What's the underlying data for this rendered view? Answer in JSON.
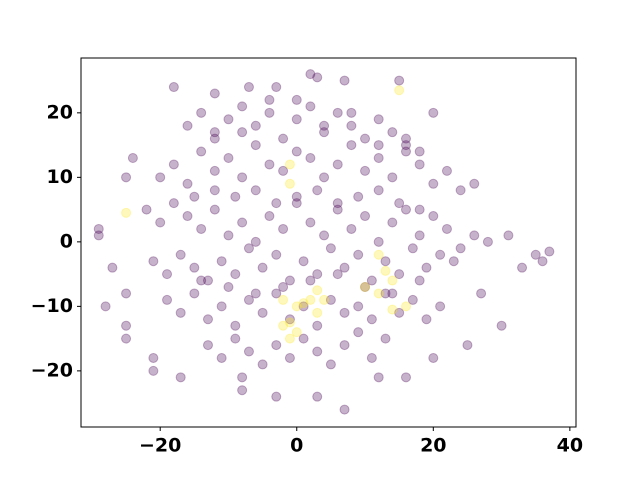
{
  "chart_data": {
    "type": "scatter",
    "xlim": [
      -31.6,
      40.9
    ],
    "ylim": [
      -28.7,
      28.5
    ],
    "xticks": [
      {
        "value": -20,
        "label": "−20"
      },
      0,
      20,
      40
    ],
    "yticks": [
      {
        "value": -20,
        "label": "−20"
      },
      {
        "value": -10,
        "label": "−10"
      },
      0,
      10,
      20
    ],
    "alpha": 0.3,
    "series": [
      {
        "color": "#440154",
        "x": [
          -29,
          -29,
          -27,
          -28,
          -25,
          -25,
          -25,
          -21,
          -21,
          -18,
          -12,
          -7,
          -3,
          2,
          3,
          7,
          15,
          20,
          -24,
          -25,
          37,
          36,
          35,
          33,
          31,
          30,
          27,
          -3,
          -8,
          3,
          7,
          12,
          16,
          20,
          25,
          -8,
          -17,
          -22,
          -20,
          -18,
          -16,
          -14,
          -12,
          -10,
          -8,
          -6,
          -4,
          -2,
          0,
          2,
          4,
          6,
          8,
          10,
          12,
          14,
          16,
          18,
          20,
          22,
          24,
          26,
          28,
          -21,
          -19,
          -17,
          -15,
          -13,
          -11,
          -9,
          -7,
          -5,
          -3,
          -1,
          1,
          3,
          5,
          7,
          9,
          11,
          13,
          15,
          17,
          19,
          21,
          23,
          -20,
          -18,
          -16,
          -14,
          -12,
          -10,
          -8,
          -6,
          -4,
          -2,
          0,
          2,
          4,
          6,
          8,
          10,
          12,
          14,
          16,
          18,
          20,
          22,
          24,
          26,
          -19,
          -17,
          -15,
          -13,
          -11,
          -9,
          -7,
          -5,
          -3,
          -1,
          1,
          3,
          5,
          7,
          9,
          11,
          13,
          15,
          17,
          19,
          21,
          -16,
          -14,
          -12,
          -10,
          -8,
          -6,
          -4,
          -2,
          0,
          2,
          4,
          6,
          8,
          10,
          12,
          14,
          16,
          18,
          -13,
          -11,
          -9,
          -7,
          -5,
          -3,
          -1,
          1,
          3,
          5,
          7,
          9,
          11,
          13,
          -15,
          -12,
          -9,
          -6,
          -3,
          0,
          3,
          6,
          9,
          12,
          15,
          18,
          -14,
          -10,
          -6,
          -2,
          2,
          6,
          10,
          14,
          18,
          -12,
          -8,
          -4,
          0,
          4,
          8,
          12,
          16
        ],
        "y": [
          2,
          1,
          -4,
          -10,
          -8,
          -13,
          -15,
          -20,
          -18,
          24,
          23,
          24,
          24,
          26,
          25.5,
          25,
          25,
          20,
          13,
          10,
          -1.5,
          -3,
          -2,
          -4,
          1,
          -13,
          -8,
          -24,
          -23,
          -24,
          -26,
          -21,
          -21,
          -18,
          -16,
          -21,
          -21,
          5,
          3,
          6,
          4,
          2,
          5,
          1,
          3,
          0,
          4,
          2,
          6,
          3,
          1,
          5,
          2,
          4,
          0,
          3,
          5,
          1,
          4,
          2,
          -1,
          1,
          0,
          -3,
          -5,
          -2,
          -4,
          -6,
          -3,
          -5,
          -1,
          -4,
          -2,
          -6,
          -3,
          -5,
          -1,
          -4,
          -2,
          -6,
          -3,
          -5,
          -1,
          -4,
          -2,
          -3,
          10,
          12,
          9,
          14,
          11,
          13,
          10,
          15,
          12,
          11,
          14,
          13,
          10,
          12,
          15,
          11,
          13,
          10,
          14,
          12,
          9,
          11,
          8,
          9,
          -9,
          -11,
          -8,
          -12,
          -10,
          -13,
          -9,
          -11,
          -8,
          -12,
          -10,
          -13,
          -9,
          -11,
          -10,
          -12,
          -8,
          -11,
          -9,
          -12,
          -10,
          18,
          20,
          17,
          19,
          21,
          18,
          20,
          16,
          19,
          21,
          17,
          20,
          18,
          16,
          19,
          17,
          15,
          14,
          -16,
          -18,
          -15,
          -17,
          -19,
          -16,
          -18,
          -15,
          -17,
          -19,
          -16,
          -14,
          -18,
          -15,
          7,
          8,
          7,
          8,
          6,
          7,
          8,
          6,
          7,
          8,
          6,
          5,
          -6,
          -7,
          -8,
          -7,
          -6,
          -5,
          -7,
          -8,
          -6,
          16,
          17,
          22,
          22,
          18,
          20,
          15,
          16
        ]
      },
      {
        "color": "#fde725",
        "x": [
          -25,
          -1,
          -1,
          15,
          12,
          13,
          14,
          14,
          16,
          3,
          2,
          1,
          0,
          -1,
          -2,
          0,
          -1,
          3,
          10,
          12,
          -2,
          4
        ],
        "y": [
          4.5,
          12,
          9,
          23.5,
          -2,
          -4.5,
          -6,
          -10.5,
          -10,
          -7.5,
          -9,
          -9.5,
          -10,
          -12.5,
          -13,
          -14,
          -15,
          -11,
          -7,
          -8,
          -9,
          -9
        ]
      }
    ]
  }
}
